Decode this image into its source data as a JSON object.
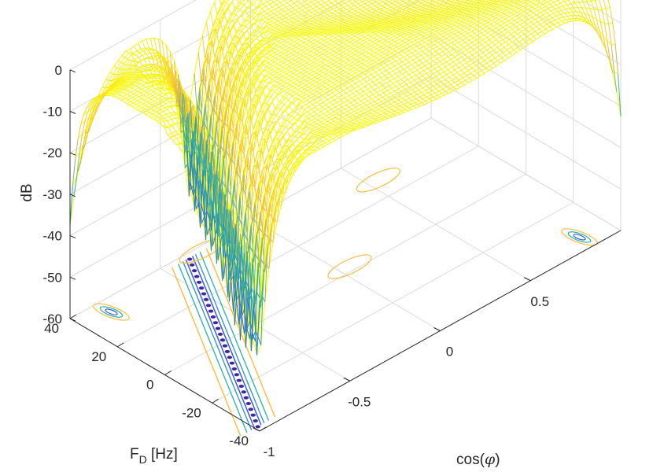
{
  "chart_data": {
    "type": "surface",
    "title": "",
    "zlabel": "dB",
    "ylabel": "F",
    "ylabel_sub": "D",
    "ylabel_unit": " [Hz]",
    "xlabel": "cos(",
    "xlabel_symbol": "φ",
    "xlabel_end": ")",
    "x_range": [
      -1,
      1
    ],
    "y_range": [
      -40,
      40
    ],
    "z_range": [
      -60,
      0
    ],
    "x_ticks": [
      "-1",
      "-0.5",
      "0",
      "0.5"
    ],
    "y_ticks": [
      "-40",
      "-20",
      "0",
      "20",
      "40"
    ],
    "z_ticks": [
      "0",
      "-10",
      "-20",
      "-30",
      "-40",
      "-50",
      "-60"
    ],
    "grid": true,
    "colormap": "parula",
    "contour_projection": true,
    "notch_line": {
      "description_free": true,
      "x_start": -1,
      "x_end": -0.35,
      "y_start": -40,
      "y_end": 40,
      "min_db": -60
    },
    "secondary_notches": [
      {
        "x": -1,
        "y": 40,
        "min_db": -34
      },
      {
        "x": 1,
        "y": -40,
        "min_db": -34
      }
    ]
  },
  "colors": {
    "high": "#f9fb0e",
    "upper": "#fbbc3e",
    "mid": "#28b2a0",
    "low": "#3a5cd8",
    "lowest": "#3e26a8",
    "grid": "#dadada",
    "axis": "#262626"
  }
}
